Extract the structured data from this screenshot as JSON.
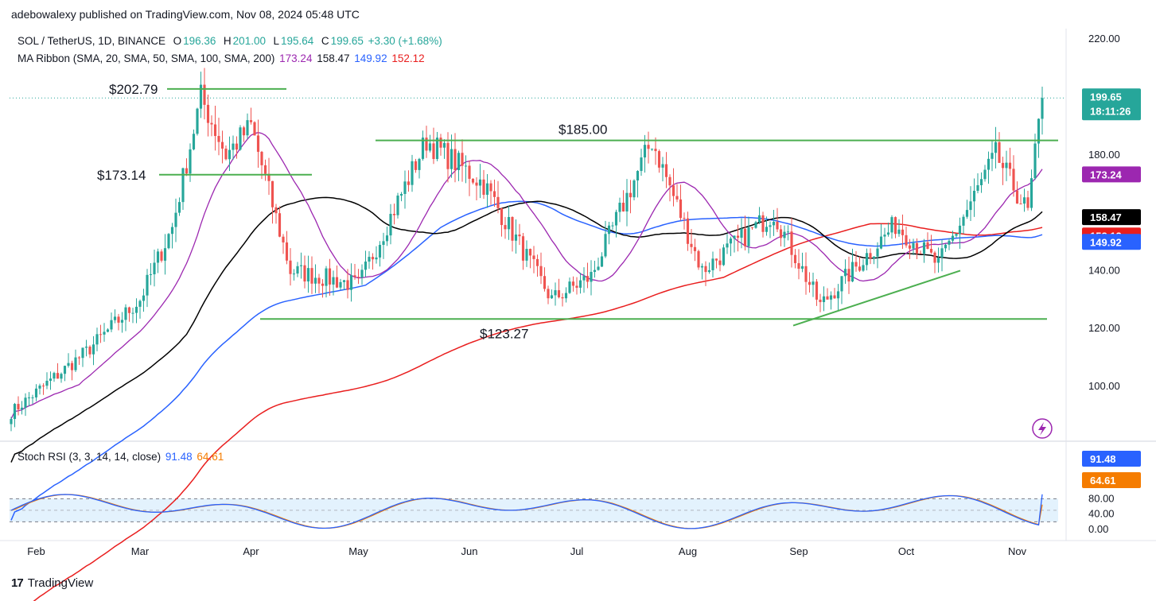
{
  "header": {
    "published": "adebowalexy published on TradingView.com, Nov 08, 2024 05:48 UTC",
    "symbol": "SOL / TetherUS, 1D, BINANCE",
    "o_label": "O",
    "o_value": "196.36",
    "h_label": "H",
    "h_value": "201.00",
    "l_label": "L",
    "l_value": "195.64",
    "c_label": "C",
    "c_value": "199.65",
    "change": "+3.30 (+1.68%)",
    "ma_label": "MA Ribbon (SMA, 20, SMA, 50, SMA, 100, SMA, 200)",
    "ma20": "173.24",
    "ma50": "158.47",
    "ma100": "149.92",
    "ma200": "152.12",
    "stoch_label": "Stoch RSI (3, 3, 14, 14, close)",
    "stoch_k": "91.48",
    "stoch_d": "64.61"
  },
  "footer": {
    "brand": "TradingView",
    "logo": "17"
  },
  "colors": {
    "up": "#26a69a",
    "down": "#ef5350",
    "ma20": "#9c27b0",
    "ma50": "#000000",
    "ma100": "#2962ff",
    "ma200": "#e91e1e",
    "trend": "#4caf50",
    "stoch_k": "#2962ff",
    "stoch_d": "#f57c00",
    "stoch_band": "#e3f2fd"
  },
  "chart_data": [
    {
      "type": "candlestick",
      "title": "SOL / TetherUS, 1D, BINANCE",
      "x_labels": [
        "Feb",
        "Mar",
        "Apr",
        "May",
        "Jun",
        "Jul",
        "Aug",
        "Sep",
        "Oct",
        "Nov"
      ],
      "y_ticks": [
        "220.00",
        "180.00",
        "140.00",
        "120.00",
        "100.00"
      ],
      "ylim": [
        85,
        225
      ],
      "last_price": "199.65",
      "countdown": "18:11:26",
      "badges": [
        "199.65",
        "173.24",
        "158.47",
        "152.12",
        "149.92"
      ],
      "annotations": [
        "$202.79",
        "$173.14",
        "$185.00",
        "$123.27"
      ],
      "ohlc_approx": [
        {
          "date": "2024-01-25",
          "close": 91
        },
        {
          "date": "2024-02-01",
          "close": 98
        },
        {
          "date": "2024-02-15",
          "close": 112
        },
        {
          "date": "2024-03-01",
          "close": 130
        },
        {
          "date": "2024-03-10",
          "close": 155
        },
        {
          "date": "2024-03-18",
          "close": 200
        },
        {
          "date": "2024-03-25",
          "close": 180
        },
        {
          "date": "2024-04-01",
          "close": 190
        },
        {
          "date": "2024-04-12",
          "close": 140
        },
        {
          "date": "2024-05-01",
          "close": 135
        },
        {
          "date": "2024-05-20",
          "close": 185
        },
        {
          "date": "2024-06-05",
          "close": 170
        },
        {
          "date": "2024-06-24",
          "close": 130
        },
        {
          "date": "2024-07-05",
          "close": 138
        },
        {
          "date": "2024-07-22",
          "close": 185
        },
        {
          "date": "2024-08-05",
          "close": 140
        },
        {
          "date": "2024-08-25",
          "close": 160
        },
        {
          "date": "2024-09-07",
          "close": 128
        },
        {
          "date": "2024-09-28",
          "close": 156
        },
        {
          "date": "2024-10-10",
          "close": 142
        },
        {
          "date": "2024-10-26",
          "close": 180
        },
        {
          "date": "2024-11-04",
          "close": 160
        },
        {
          "date": "2024-11-08",
          "close": 199.65
        }
      ],
      "horizontal_levels": [
        202.79,
        173.14,
        185.0,
        123.27
      ]
    },
    {
      "type": "line",
      "title": "Stoch RSI (3, 3, 14, 14, close)",
      "y_ticks": [
        "80.00",
        "40.00",
        "0.00"
      ],
      "ylim": [
        0,
        100
      ],
      "band": [
        20,
        80
      ],
      "series": [
        {
          "name": "91.48",
          "last": 91.48
        },
        {
          "name": "64.61",
          "last": 64.61
        }
      ]
    }
  ]
}
